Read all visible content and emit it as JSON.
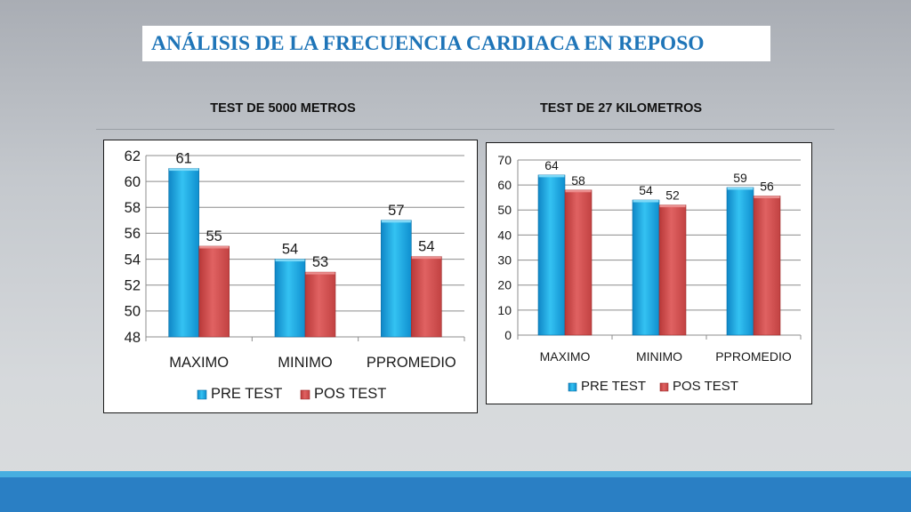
{
  "title": "ANÁLISIS DE LA FRECUENCIA CARDIACA  EN REPOSO",
  "charts": {
    "left": {
      "heading": "TEST DE 5000 METROS"
    },
    "right": {
      "heading": "TEST DE 27 KILOMETROS"
    }
  },
  "colors": {
    "pre": "#1aa7df",
    "pos": "#d65050",
    "title": "#1f75b8",
    "footer": "#2a7fc4"
  },
  "chart_data": [
    {
      "type": "bar",
      "title": "TEST DE 5000 METROS",
      "categories": [
        "MAXIMO",
        "MINIMO",
        "PPROMEDIO"
      ],
      "series": [
        {
          "name": "PRE TEST",
          "values": [
            61,
            54,
            57
          ],
          "labels": [
            "61",
            "54",
            "57"
          ]
        },
        {
          "name": "POS TEST",
          "values": [
            55,
            53,
            54.2
          ],
          "labels": [
            "55",
            "53",
            "54"
          ]
        }
      ],
      "ylim": [
        48,
        62
      ],
      "yticks": [
        48,
        50,
        52,
        54,
        56,
        58,
        60,
        62
      ],
      "grid": true,
      "legend": "bottom"
    },
    {
      "type": "bar",
      "title": "TEST DE 27 KILOMETROS",
      "categories": [
        "MAXIMO",
        "MINIMO",
        "PPROMEDIO"
      ],
      "series": [
        {
          "name": "PRE TEST",
          "values": [
            64,
            54,
            59
          ],
          "labels": [
            "64",
            "54",
            "59"
          ]
        },
        {
          "name": "POS TEST",
          "values": [
            58,
            52,
            55.6
          ],
          "labels": [
            "58",
            "52",
            "56"
          ]
        }
      ],
      "ylim": [
        0,
        70
      ],
      "yticks": [
        0,
        10,
        20,
        30,
        40,
        50,
        60,
        70
      ],
      "grid": true,
      "legend": "bottom"
    }
  ]
}
